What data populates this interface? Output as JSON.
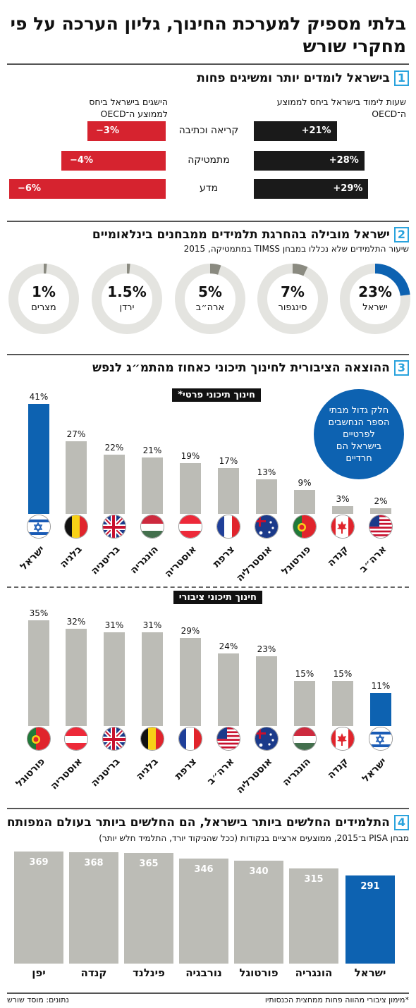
{
  "title": "בלתי מספיק למערכת החינוך, גליון הערכה על פי מחקרי שורש",
  "colors": {
    "israel_blue": "#0d62b1",
    "grey": "#bcbcb6",
    "red": "#d6232f",
    "black": "#1a1a1a",
    "accent": "#2aa3dd",
    "ring_grey": "#e4e4e0",
    "ring_mark": "#8a8a80"
  },
  "section1": {
    "num": "1",
    "title": "בישראל לומדים יותר ומשיגים פחות",
    "col_right": "שעות לימוד בישראל ביחס לממוצע ה־OECD",
    "col_left": "הישגים בישראל ביחס לממוצע ה־OECD"
  },
  "section2": {
    "num": "2",
    "title": "ישראל מובילה בהחרגת תלמידים ממבחנים בינלאומיים",
    "subtitle": "שיעור התלמידים שלא נכללו במבחן TIMSS במתמטיקה, 2015"
  },
  "section3": {
    "num": "3",
    "title": "ההוצאה הציבורית לחינוך תיכוני כאחוז מהתמ״ג לנפש",
    "private_tag": "חינוך תיכוני פרטי*",
    "public_tag": "חינוך תיכוני ציבורי",
    "bubble": "חלק גדול מבתי הספר הנחשבים לפרטיים בישראל הם חרדיים"
  },
  "section4": {
    "num": "4",
    "title": "התלמידים החלשים ביותר בישראל, הם החלשים ביותר בעולם המפותח",
    "subtitle": "מבחן PISA ב־2015, ממוצעים ארציים בנקודות (ככל שהניקוד יורד, התלמיד חלש יותר)"
  },
  "footnote": "*מימון ציבורי מהווה פחות ממחצית הכנסותיו",
  "source": "נתונים: מוסד שורש",
  "chart_data": [
    {
      "type": "bar",
      "orientation": "horizontal",
      "title": "בישראל לומדים יותר ומשיגים פחות",
      "categories": [
        "קריאה וכתיבה",
        "מתמטיקה",
        "מדע"
      ],
      "series": [
        {
          "name": "שעות לימוד בישראל ביחס לממוצע ה־OECD",
          "values": [
            21,
            28,
            29
          ],
          "labels": [
            "+21%",
            "+28%",
            "+29%"
          ]
        },
        {
          "name": "הישגים בישראל ביחס לממוצע ה־OECD",
          "values": [
            -3,
            -4,
            -6
          ],
          "labels": [
            "−3%",
            "−4%",
            "−6%"
          ]
        }
      ]
    },
    {
      "type": "pie",
      "title": "ישראל מובילה בהחרגת תלמידים ממבחנים בינלאומיים",
      "categories": [
        "ישראל",
        "סינגפור",
        "ארה״ב",
        "ירדן",
        "מצרים"
      ],
      "values": [
        23,
        7,
        5,
        1.5,
        1
      ],
      "labels": [
        "23%",
        "7%",
        "5%",
        "1.5%",
        "1%"
      ]
    },
    {
      "type": "bar",
      "title": "חינוך תיכוני פרטי*",
      "categories": [
        "ישראל",
        "בלגיה",
        "בריטניה",
        "הונגריה",
        "אוסטריה",
        "צרפת",
        "אוסטרליה",
        "פורטוגל",
        "קנדה",
        "ארה״ב"
      ],
      "values": [
        41,
        27,
        22,
        21,
        19,
        17,
        13,
        9,
        3,
        2
      ],
      "labels": [
        "41%",
        "27%",
        "22%",
        "21%",
        "19%",
        "17%",
        "13%",
        "9%",
        "3%",
        "2%"
      ],
      "flags": [
        "israel",
        "belgium",
        "uk",
        "hungary",
        "austria",
        "france",
        "australia",
        "portugal",
        "canada",
        "usa"
      ]
    },
    {
      "type": "bar",
      "title": "חינוך תיכוני ציבורי",
      "categories": [
        "פורטוגל",
        "אוסטריה",
        "בריטניה",
        "בלגיה",
        "צרפת",
        "ארה״ב",
        "אוסטרליה",
        "הונגריה",
        "קנדה",
        "ישראל"
      ],
      "values": [
        35,
        32,
        31,
        31,
        29,
        24,
        23,
        15,
        15,
        11
      ],
      "labels": [
        "35%",
        "32%",
        "31%",
        "31%",
        "29%",
        "24%",
        "23%",
        "15%",
        "15%",
        "11%"
      ],
      "flags": [
        "portugal",
        "austria",
        "uk",
        "belgium",
        "france",
        "usa",
        "australia",
        "hungary",
        "canada",
        "israel"
      ]
    },
    {
      "type": "bar",
      "title": "התלמידים החלשים ביותר בישראל, הם החלשים ביותר בעולם המפותח",
      "categories": [
        "יפן",
        "קנדה",
        "פינלנד",
        "נורבגיה",
        "פורטוגל",
        "הונגריה",
        "ישראל"
      ],
      "values": [
        369,
        368,
        365,
        346,
        340,
        315,
        291
      ],
      "labels": [
        "369",
        "368",
        "365",
        "346",
        "340",
        "315",
        "291"
      ]
    }
  ]
}
